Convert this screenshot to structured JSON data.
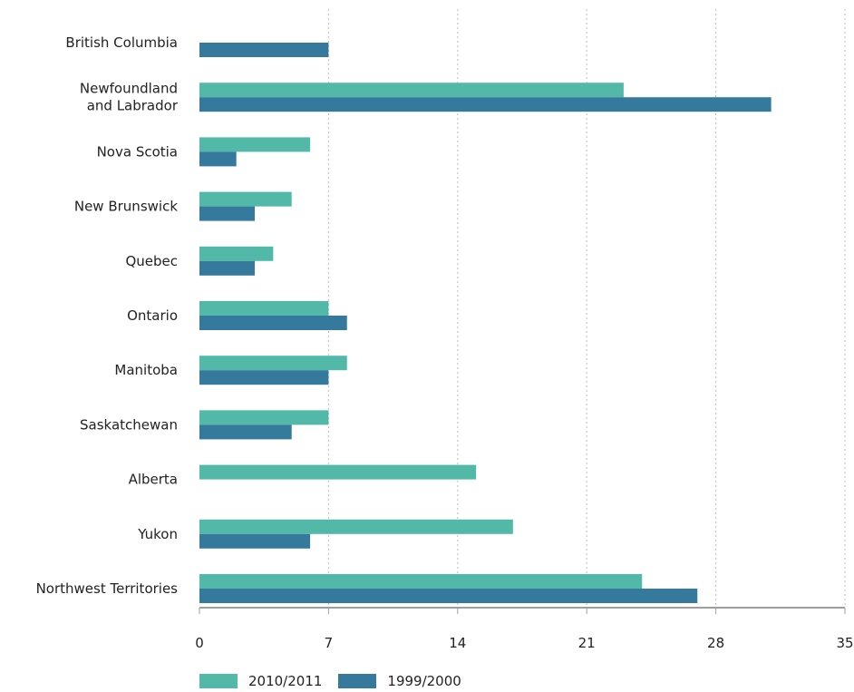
{
  "chart_data": {
    "type": "bar",
    "orientation": "horizontal",
    "categories": [
      "British Columbia",
      "Newfoundland\nand Labrador",
      "Nova Scotia",
      "New Brunswick",
      "Quebec",
      "Ontario",
      "Manitoba",
      "Saskatchewan",
      "Alberta",
      "Yukon",
      "Northwest Territories"
    ],
    "series": [
      {
        "name": "2010/2011",
        "color": "#52b9a9",
        "values": [
          0,
          23,
          6,
          5,
          4,
          7,
          8,
          7,
          15,
          17,
          24
        ]
      },
      {
        "name": "1999/2000",
        "color": "#357a9c",
        "values": [
          7,
          31,
          2,
          3,
          3,
          8,
          7,
          5,
          0,
          6,
          27
        ]
      }
    ],
    "xlim": [
      0,
      35
    ],
    "xticks": [
      "0",
      "7",
      "14",
      "21",
      "28",
      "35"
    ],
    "grid": "vertical-dotted",
    "legend_position": "bottom-left"
  }
}
